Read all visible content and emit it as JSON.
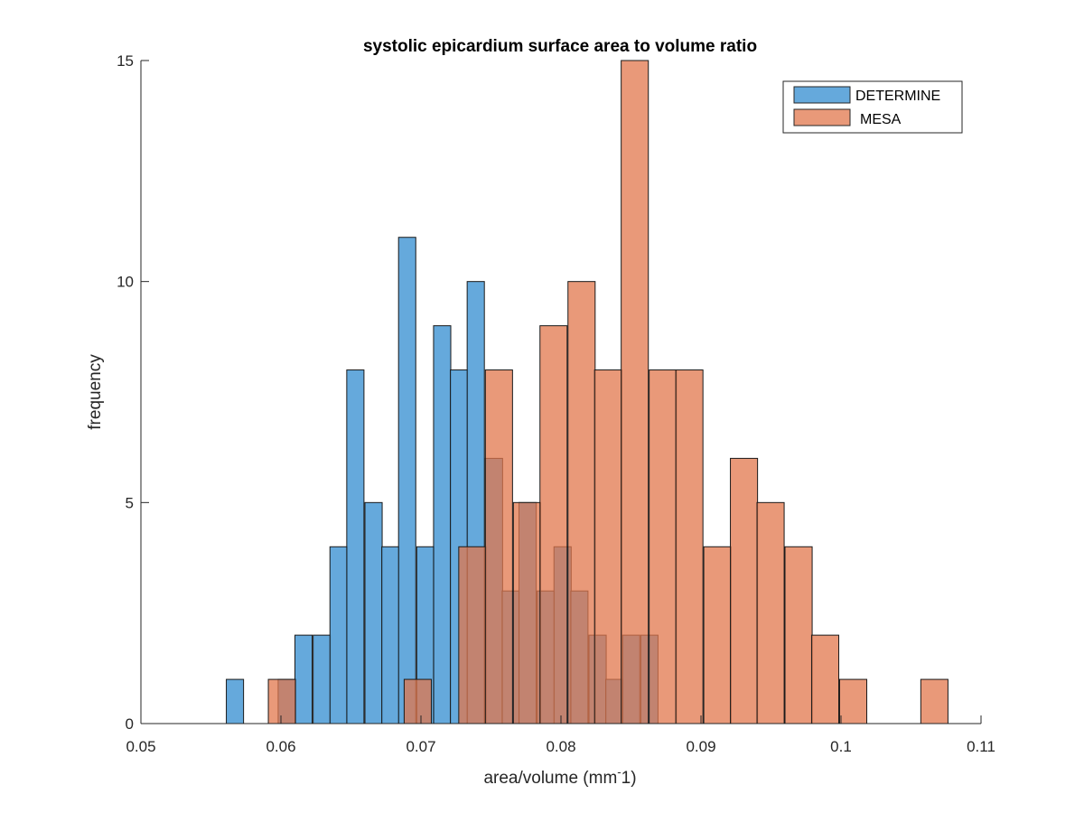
{
  "chart_data": {
    "type": "bar",
    "subtype": "overlaid-histogram",
    "title": "systolic epicardium surface area to volume ratio",
    "xlabel": "area/volume (mm",
    "xlabel_sup": "-",
    "xlabel_tail": "1)",
    "ylabel": "frequency",
    "xlim": [
      0.05,
      0.11
    ],
    "ylim": [
      0,
      15
    ],
    "xticks": [
      0.05,
      0.06,
      0.07,
      0.08,
      0.09,
      0.1,
      0.11
    ],
    "xtick_labels": [
      "0.05",
      "0.06",
      "0.07",
      "0.08",
      "0.09",
      "0.1",
      "0.11"
    ],
    "yticks": [
      0,
      5,
      10,
      15
    ],
    "ytick_labels": [
      "0",
      "5",
      "10",
      "15"
    ],
    "grid": false,
    "legend_position": "top-right",
    "series": [
      {
        "name": "DETERMINE",
        "color": "#4a9ad6",
        "bin_width": 0.00123,
        "bins": [
          {
            "x0": 0.0561,
            "count": 1
          },
          {
            "x0": 0.0573,
            "count": 0
          },
          {
            "x0": 0.0586,
            "count": 0
          },
          {
            "x0": 0.0598,
            "count": 1
          },
          {
            "x0": 0.061,
            "count": 2
          },
          {
            "x0": 0.0623,
            "count": 2
          },
          {
            "x0": 0.0635,
            "count": 4
          },
          {
            "x0": 0.0647,
            "count": 8
          },
          {
            "x0": 0.066,
            "count": 5
          },
          {
            "x0": 0.0672,
            "count": 4
          },
          {
            "x0": 0.0684,
            "count": 11
          },
          {
            "x0": 0.0697,
            "count": 4
          },
          {
            "x0": 0.0709,
            "count": 9
          },
          {
            "x0": 0.0721,
            "count": 8
          },
          {
            "x0": 0.0733,
            "count": 10
          },
          {
            "x0": 0.0746,
            "count": 6
          },
          {
            "x0": 0.0758,
            "count": 3
          },
          {
            "x0": 0.077,
            "count": 5
          },
          {
            "x0": 0.0783,
            "count": 3
          },
          {
            "x0": 0.0795,
            "count": 4
          },
          {
            "x0": 0.0807,
            "count": 3
          },
          {
            "x0": 0.082,
            "count": 2
          },
          {
            "x0": 0.0832,
            "count": 1
          },
          {
            "x0": 0.0844,
            "count": 2
          },
          {
            "x0": 0.0857,
            "count": 2
          }
        ]
      },
      {
        "name": "MESA",
        "color": "#e2774c",
        "bin_width": 0.00194,
        "bins": [
          {
            "x0": 0.0591,
            "count": 1
          },
          {
            "x0": 0.0611,
            "count": 0
          },
          {
            "x0": 0.063,
            "count": 0
          },
          {
            "x0": 0.0649,
            "count": 0
          },
          {
            "x0": 0.0669,
            "count": 0
          },
          {
            "x0": 0.0688,
            "count": 1
          },
          {
            "x0": 0.0708,
            "count": 0
          },
          {
            "x0": 0.0727,
            "count": 4
          },
          {
            "x0": 0.0746,
            "count": 8
          },
          {
            "x0": 0.0766,
            "count": 5
          },
          {
            "x0": 0.0785,
            "count": 9
          },
          {
            "x0": 0.0805,
            "count": 10
          },
          {
            "x0": 0.0824,
            "count": 8
          },
          {
            "x0": 0.0843,
            "count": 15
          },
          {
            "x0": 0.0863,
            "count": 8
          },
          {
            "x0": 0.0882,
            "count": 8
          },
          {
            "x0": 0.0902,
            "count": 4
          },
          {
            "x0": 0.0921,
            "count": 6
          },
          {
            "x0": 0.094,
            "count": 5
          },
          {
            "x0": 0.096,
            "count": 4
          },
          {
            "x0": 0.0979,
            "count": 2
          },
          {
            "x0": 0.0999,
            "count": 1
          },
          {
            "x0": 0.1018,
            "count": 0
          },
          {
            "x0": 0.1037,
            "count": 0
          },
          {
            "x0": 0.1057,
            "count": 1
          }
        ]
      }
    ]
  }
}
